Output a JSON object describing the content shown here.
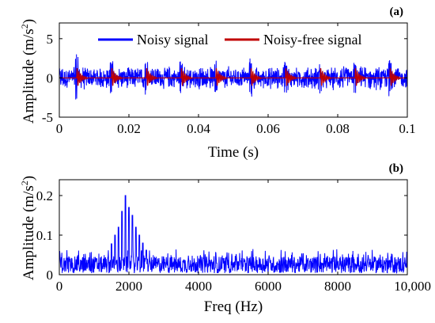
{
  "chart_data": [
    {
      "panel": "(a)",
      "type": "line",
      "xlabel": "Time (s)",
      "ylabel": "Amplitude (m/s",
      "ylabel_sup": "2",
      "ylabel_close": ")",
      "xlim": [
        0,
        0.1
      ],
      "ylim": [
        -5,
        7
      ],
      "x_ticks": [
        0,
        0.02,
        0.04,
        0.06,
        0.08,
        0.1
      ],
      "x_tick_labels": [
        "0",
        "0.02",
        "0.04",
        "0.06",
        "0.08",
        "0.1"
      ],
      "y_ticks": [
        -5,
        0,
        5
      ],
      "y_tick_labels": [
        "-5",
        "0",
        "5"
      ],
      "grid": false,
      "legend_position": "top",
      "series": [
        {
          "name": "Noisy signal",
          "color": "#0000ff",
          "kind": "noisy vibration signal",
          "amplitude_envelope": 1.6,
          "peak_values": [
            3.3,
            2.3,
            2.2,
            2.3,
            2.2,
            2.5,
            2.1,
            2.3,
            2.0,
            2.4
          ],
          "peak_times": [
            0.005,
            0.015,
            0.025,
            0.035,
            0.045,
            0.055,
            0.065,
            0.075,
            0.085,
            0.095
          ]
        },
        {
          "name": "Noisy-free signal",
          "color": "#c00000",
          "kind": "periodic impulses",
          "impulse_period": 0.01,
          "impulse_start": 0.005,
          "impulse_peak": 1.4,
          "impulse_count": 10
        }
      ]
    },
    {
      "panel": "(b)",
      "type": "line",
      "xlabel": "Freq (Hz)",
      "ylabel": "Amplitude (m/s",
      "ylabel_sup": "2",
      "ylabel_close": ")",
      "xlim": [
        0,
        10000
      ],
      "ylim": [
        0,
        0.24
      ],
      "x_ticks": [
        0,
        2000,
        4000,
        6000,
        8000,
        10000
      ],
      "x_tick_labels": [
        "0",
        "2000",
        "4000",
        "6000",
        "8000",
        "10,000"
      ],
      "y_ticks": [
        0,
        0.1,
        0.2
      ],
      "y_tick_labels": [
        "0",
        "0.1",
        "0.2"
      ],
      "grid": false,
      "series": [
        {
          "color": "#0000ff",
          "kind": "amplitude spectrum",
          "peak_frequency": 1900,
          "peaks": [
            {
              "f": 1500,
              "a": 0.078
            },
            {
              "f": 1600,
              "a": 0.1
            },
            {
              "f": 1700,
              "a": 0.12
            },
            {
              "f": 1800,
              "a": 0.16
            },
            {
              "f": 1900,
              "a": 0.2
            },
            {
              "f": 2000,
              "a": 0.17
            },
            {
              "f": 2100,
              "a": 0.15
            },
            {
              "f": 2200,
              "a": 0.12
            },
            {
              "f": 2300,
              "a": 0.1
            },
            {
              "f": 2400,
              "a": 0.08
            },
            {
              "f": 2500,
              "a": 0.062
            }
          ],
          "noise_floor_mean": 0.025,
          "noise_floor_max": 0.065
        }
      ]
    }
  ]
}
